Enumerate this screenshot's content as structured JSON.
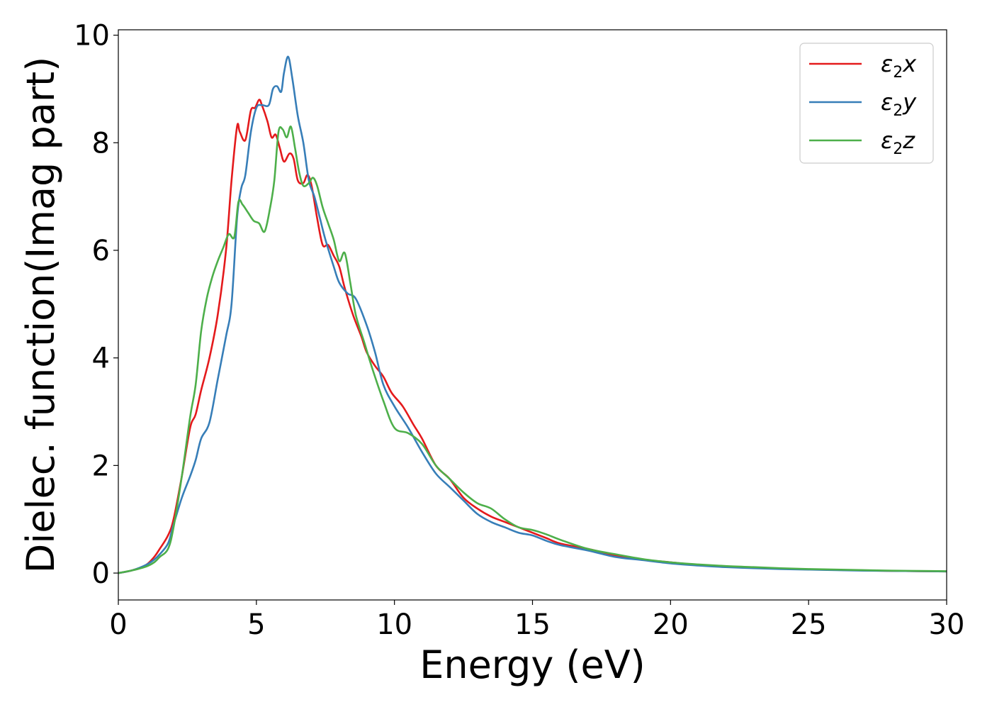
{
  "chart_data": {
    "type": "line",
    "title": "",
    "xlabel": "Energy (eV)",
    "ylabel": "Dielec. function(Imag part)",
    "xlim": [
      0,
      30
    ],
    "ylim": [
      -0.5,
      10.1
    ],
    "xticks": [
      0,
      5,
      10,
      15,
      20,
      25,
      30
    ],
    "yticks": [
      0,
      2,
      4,
      6,
      8,
      10
    ],
    "grid": false,
    "legend_position": "top-right",
    "series": [
      {
        "name": "ε2x",
        "label_base": "ε",
        "label_sub": "2",
        "label_suffix": "x",
        "color": "#e41a1c",
        "x": [
          0,
          0.5,
          1.0,
          1.3,
          1.5,
          1.8,
          2.0,
          2.3,
          2.6,
          2.8,
          3.0,
          3.3,
          3.6,
          3.9,
          4.1,
          4.3,
          4.4,
          4.6,
          4.8,
          4.95,
          5.1,
          5.2,
          5.4,
          5.55,
          5.7,
          5.85,
          6.0,
          6.2,
          6.35,
          6.5,
          6.7,
          6.85,
          7.0,
          7.2,
          7.4,
          7.6,
          7.8,
          8.0,
          8.2,
          8.5,
          8.8,
          9.0,
          9.3,
          9.6,
          9.9,
          10.3,
          10.7,
          11.0,
          11.5,
          12.0,
          12.5,
          13.0,
          13.5,
          14.0,
          14.5,
          15.0,
          15.5,
          16.0,
          17.0,
          18.0,
          19.0,
          20.0,
          21.0,
          22.0,
          23.0,
          24.0,
          25.0,
          26.0,
          27.0,
          28.0,
          29.0,
          30.0
        ],
        "y": [
          0,
          0.05,
          0.15,
          0.3,
          0.45,
          0.7,
          1.0,
          1.8,
          2.7,
          2.95,
          3.4,
          4.0,
          4.8,
          6.0,
          7.3,
          8.3,
          8.2,
          8.05,
          8.6,
          8.65,
          8.8,
          8.7,
          8.4,
          8.1,
          8.15,
          7.9,
          7.65,
          7.8,
          7.7,
          7.3,
          7.25,
          7.4,
          7.2,
          6.6,
          6.1,
          6.1,
          5.9,
          5.7,
          5.3,
          4.8,
          4.4,
          4.1,
          3.85,
          3.65,
          3.35,
          3.1,
          2.75,
          2.5,
          2.0,
          1.75,
          1.4,
          1.2,
          1.05,
          0.95,
          0.85,
          0.75,
          0.65,
          0.55,
          0.45,
          0.33,
          0.25,
          0.2,
          0.15,
          0.12,
          0.1,
          0.08,
          0.07,
          0.06,
          0.05,
          0.04,
          0.035,
          0.03
        ]
      },
      {
        "name": "ε2y",
        "label_base": "ε",
        "label_sub": "2",
        "label_suffix": "y",
        "color": "#377eb8",
        "x": [
          0,
          0.5,
          1.0,
          1.3,
          1.5,
          1.8,
          2.0,
          2.3,
          2.6,
          2.8,
          3.0,
          3.3,
          3.6,
          3.9,
          4.1,
          4.3,
          4.45,
          4.6,
          4.8,
          5.0,
          5.2,
          5.45,
          5.6,
          5.75,
          5.9,
          6.0,
          6.15,
          6.3,
          6.5,
          6.7,
          6.9,
          7.1,
          7.3,
          7.5,
          7.8,
          8.0,
          8.3,
          8.6,
          9.0,
          9.3,
          9.6,
          10.0,
          10.5,
          11.0,
          11.5,
          12.0,
          12.5,
          13.0,
          13.5,
          14.0,
          14.5,
          15.0,
          15.5,
          16.0,
          17.0,
          18.0,
          19.0,
          20.0,
          21.0,
          22.0,
          23.0,
          24.0,
          25.0,
          26.0,
          27.0,
          28.0,
          29.0,
          30.0
        ],
        "y": [
          0,
          0.05,
          0.15,
          0.25,
          0.35,
          0.55,
          0.9,
          1.4,
          1.8,
          2.1,
          2.5,
          2.8,
          3.6,
          4.4,
          5.0,
          6.6,
          7.15,
          7.4,
          8.2,
          8.65,
          8.7,
          8.7,
          9.0,
          9.05,
          8.95,
          9.3,
          9.6,
          9.2,
          8.5,
          8.0,
          7.3,
          7.0,
          6.6,
          6.2,
          5.7,
          5.4,
          5.2,
          5.1,
          4.6,
          4.1,
          3.5,
          3.1,
          2.7,
          2.25,
          1.85,
          1.6,
          1.35,
          1.1,
          0.95,
          0.85,
          0.75,
          0.7,
          0.6,
          0.52,
          0.42,
          0.3,
          0.24,
          0.18,
          0.14,
          0.11,
          0.09,
          0.075,
          0.065,
          0.055,
          0.045,
          0.04,
          0.035,
          0.03
        ]
      },
      {
        "name": "ε2z",
        "label_base": "ε",
        "label_sub": "2",
        "label_suffix": "z",
        "color": "#4daf4a",
        "x": [
          0,
          0.5,
          1.0,
          1.3,
          1.5,
          1.8,
          2.0,
          2.3,
          2.6,
          2.8,
          3.0,
          3.2,
          3.4,
          3.6,
          3.8,
          4.0,
          4.2,
          4.35,
          4.5,
          4.7,
          4.9,
          5.1,
          5.3,
          5.5,
          5.65,
          5.8,
          5.95,
          6.1,
          6.25,
          6.4,
          6.55,
          6.7,
          6.9,
          7.05,
          7.2,
          7.4,
          7.6,
          7.8,
          8.0,
          8.2,
          8.4,
          8.6,
          8.9,
          9.2,
          9.6,
          10.0,
          10.5,
          11.0,
          11.5,
          12.0,
          12.5,
          13.0,
          13.5,
          14.0,
          14.5,
          15.0,
          15.5,
          16.0,
          17.0,
          18.0,
          19.0,
          20.0,
          21.0,
          22.0,
          23.0,
          24.0,
          25.0,
          26.0,
          27.0,
          28.0,
          29.0,
          30.0
        ],
        "y": [
          0,
          0.05,
          0.12,
          0.2,
          0.3,
          0.45,
          0.85,
          1.8,
          2.9,
          3.5,
          4.5,
          5.1,
          5.5,
          5.8,
          6.05,
          6.3,
          6.25,
          6.9,
          6.85,
          6.7,
          6.55,
          6.5,
          6.35,
          6.8,
          7.3,
          8.2,
          8.25,
          8.1,
          8.3,
          7.9,
          7.45,
          7.2,
          7.25,
          7.35,
          7.2,
          6.8,
          6.5,
          6.2,
          5.8,
          5.95,
          5.4,
          4.8,
          4.3,
          3.8,
          3.2,
          2.7,
          2.6,
          2.4,
          2.0,
          1.75,
          1.5,
          1.3,
          1.2,
          1.0,
          0.85,
          0.8,
          0.72,
          0.62,
          0.45,
          0.35,
          0.26,
          0.2,
          0.16,
          0.13,
          0.11,
          0.09,
          0.075,
          0.065,
          0.055,
          0.045,
          0.04,
          0.035
        ]
      }
    ]
  }
}
